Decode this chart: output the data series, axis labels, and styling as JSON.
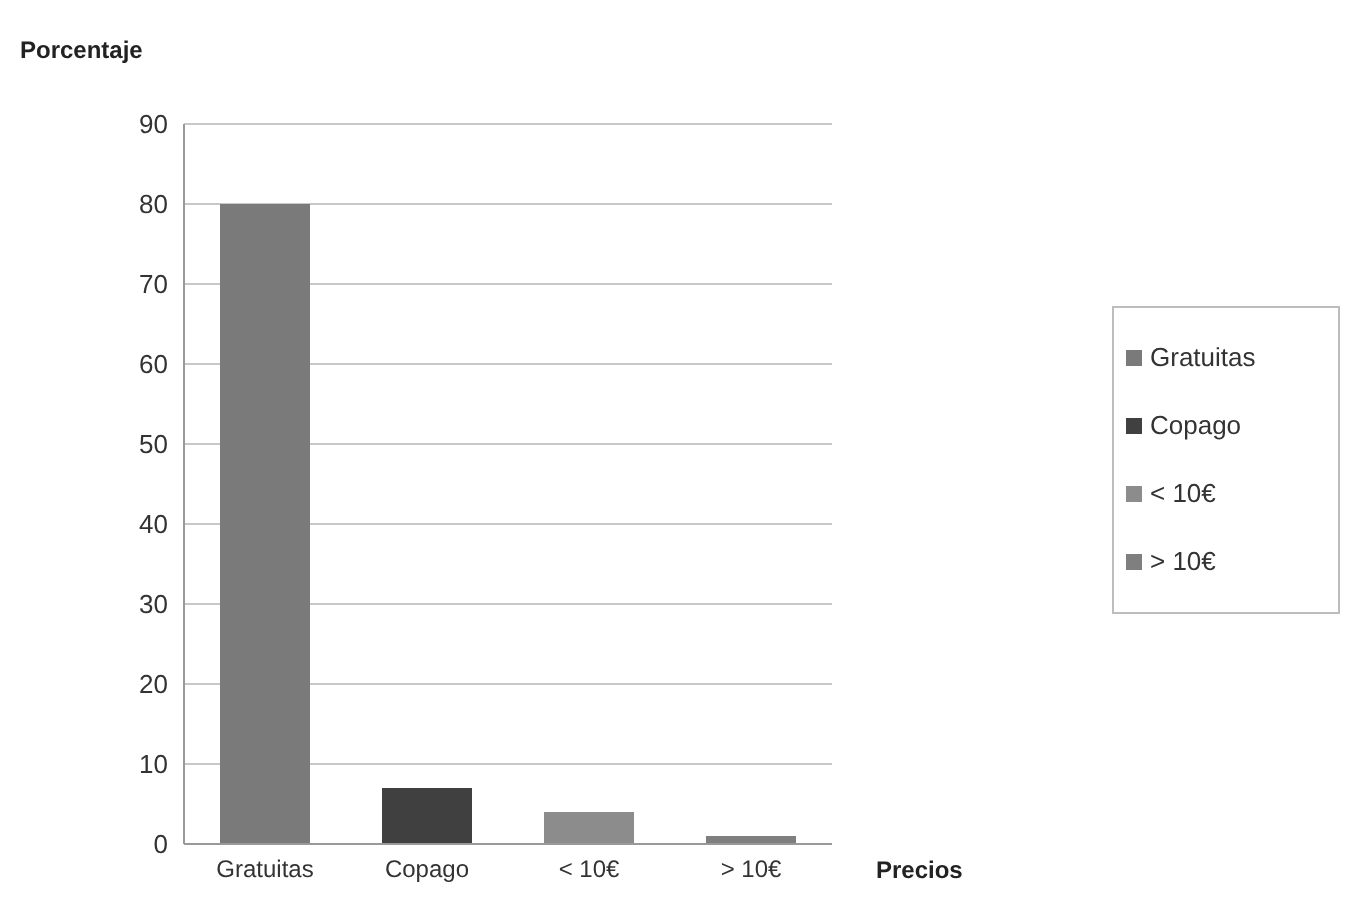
{
  "chart_data": {
    "type": "bar",
    "xlabel": "Precios",
    "ylabel": "Porcentaje",
    "categories": [
      "Gratuitas",
      "Copago",
      "< 10€",
      "> 10€"
    ],
    "stacked": true,
    "series": [
      {
        "name": "Gratuitas",
        "color": "#7a7a7a",
        "values": [
          80,
          null,
          null,
          null
        ]
      },
      {
        "name": "Copago",
        "color": "#404040",
        "values": [
          null,
          7,
          null,
          null
        ]
      },
      {
        "name": "< 10€",
        "color": "#8c8c8c",
        "values": [
          null,
          null,
          4,
          null
        ]
      },
      {
        "name": "> 10€",
        "color": "#7f7f7f",
        "values": [
          null,
          null,
          null,
          1
        ]
      }
    ],
    "ylim": [
      0,
      90
    ],
    "yticks": [
      0,
      10,
      20,
      30,
      40,
      50,
      60,
      70,
      80,
      90
    ],
    "grid": "y",
    "legend": "right"
  }
}
